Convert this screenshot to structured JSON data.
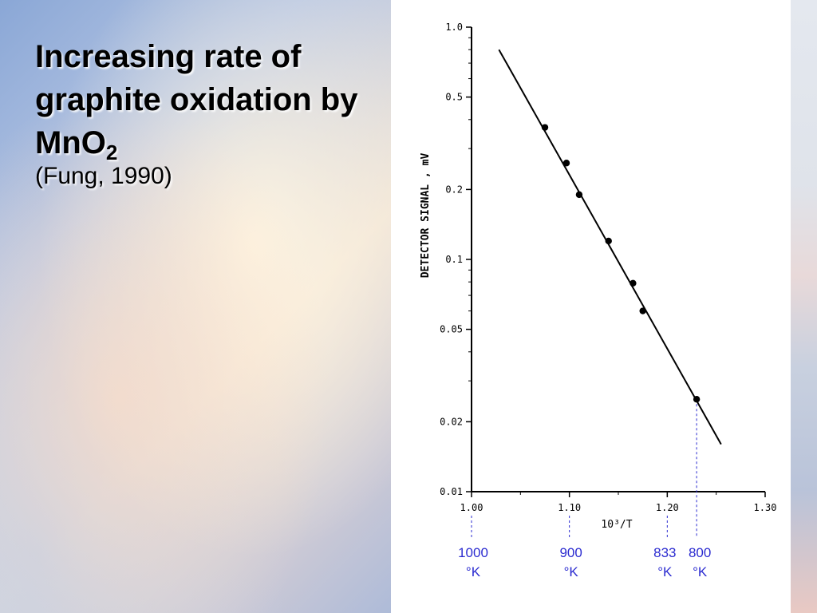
{
  "slide": {
    "title_main": "Increasing rate of graphite oxidation by MnO",
    "title_sub": "2",
    "citation": "(Fung, 1990)"
  },
  "colors": {
    "annotation": "#2b2bd0",
    "line": "#000000"
  },
  "chart_data": {
    "type": "scatter",
    "xlabel": "10³/T",
    "ylabel": "DETECTOR SIGNAL , mV",
    "xlim": [
      1.0,
      1.3
    ],
    "ylim": [
      0.01,
      1.0
    ],
    "yscale": "log",
    "x_ticks": [
      "1.00",
      "1.10",
      "1.20",
      "1.30"
    ],
    "y_ticks": [
      {
        "value": 1.0,
        "label": "1.0"
      },
      {
        "value": 0.5,
        "label": "0.5"
      },
      {
        "value": 0.2,
        "label": "0.2"
      },
      {
        "value": 0.1,
        "label": "0.1"
      },
      {
        "value": 0.05,
        "label": "0.05"
      },
      {
        "value": 0.02,
        "label": "0.02"
      },
      {
        "value": 0.01,
        "label": "0.01"
      }
    ],
    "points": [
      {
        "x": 1.075,
        "y": 0.37
      },
      {
        "x": 1.097,
        "y": 0.26
      },
      {
        "x": 1.11,
        "y": 0.19
      },
      {
        "x": 1.14,
        "y": 0.12
      },
      {
        "x": 1.165,
        "y": 0.079
      },
      {
        "x": 1.175,
        "y": 0.06
      },
      {
        "x": 1.23,
        "y": 0.025
      }
    ],
    "fit_line": [
      {
        "x": 1.028,
        "y": 0.8
      },
      {
        "x": 1.255,
        "y": 0.016
      }
    ],
    "grid": false,
    "legend": "none",
    "temperature_annotations": [
      {
        "x": 1.0,
        "label_top": "1000",
        "label_bottom": "°K"
      },
      {
        "x": 1.1,
        "label_top": "900",
        "label_bottom": "°K"
      },
      {
        "x": 1.2,
        "label_top": "833",
        "label_bottom": "°K"
      },
      {
        "x": 1.23,
        "label_top": "800",
        "label_bottom": "°K"
      }
    ]
  }
}
